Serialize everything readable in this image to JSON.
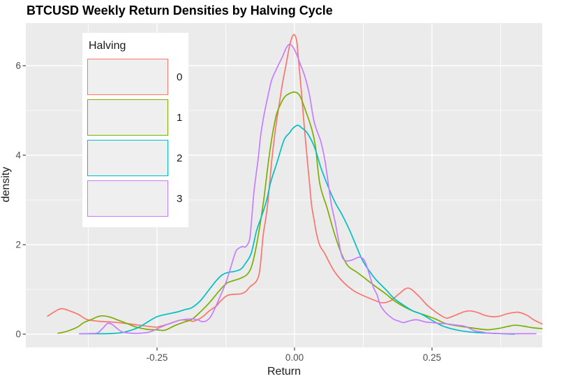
{
  "legend": {
    "title": "Halving"
  },
  "chart_data": {
    "type": "line",
    "subtype": "density",
    "title": "BTCUSD Weekly Return Densities by Halving Cycle",
    "xlabel": "Return",
    "ylabel": "density",
    "xlim": [
      -0.4886,
      0.4505
    ],
    "ylim": [
      -0.2969,
      6.9531
    ],
    "grid": true,
    "panel_bg": "#EBEBEB",
    "grid_color": "#FFFFFF",
    "tick_color": "#333333",
    "legend_position": "inside-top-left",
    "x_major_ticks": [
      -0.25,
      0.0,
      0.25
    ],
    "x_tick_labels": [
      "-0.25",
      "0.00",
      "0.25"
    ],
    "x_minor_ticks": [
      -0.375,
      -0.125,
      0.125,
      0.375
    ],
    "y_major_ticks": [
      0,
      2,
      4,
      6
    ],
    "y_tick_labels": [
      "0",
      "2",
      "4",
      "6"
    ],
    "y_minor_ticks": [
      1,
      3,
      5
    ],
    "series": [
      {
        "name": "0",
        "color": "#F8766D",
        "points": [
          [
            -0.449,
            0.4
          ],
          [
            -0.434,
            0.52
          ],
          [
            -0.423,
            0.57
          ],
          [
            -0.409,
            0.52
          ],
          [
            -0.393,
            0.44
          ],
          [
            -0.378,
            0.33
          ],
          [
            -0.358,
            0.29
          ],
          [
            -0.332,
            0.27
          ],
          [
            -0.307,
            0.24
          ],
          [
            -0.282,
            0.2
          ],
          [
            -0.263,
            0.17
          ],
          [
            -0.25,
            0.16
          ],
          [
            -0.231,
            0.22
          ],
          [
            -0.212,
            0.3
          ],
          [
            -0.203,
            0.32
          ],
          [
            -0.19,
            0.3
          ],
          [
            -0.183,
            0.29
          ],
          [
            -0.168,
            0.38
          ],
          [
            -0.155,
            0.52
          ],
          [
            -0.142,
            0.63
          ],
          [
            -0.136,
            0.72
          ],
          [
            -0.123,
            0.86
          ],
          [
            -0.11,
            0.89
          ],
          [
            -0.098,
            0.9
          ],
          [
            -0.089,
            0.95
          ],
          [
            -0.081,
            1.06
          ],
          [
            -0.069,
            1.19
          ],
          [
            -0.063,
            1.45
          ],
          [
            -0.057,
            2.21
          ],
          [
            -0.053,
            2.52
          ],
          [
            -0.049,
            2.89
          ],
          [
            -0.045,
            3.41
          ],
          [
            -0.041,
            3.93
          ],
          [
            -0.036,
            4.45
          ],
          [
            -0.032,
            4.81
          ],
          [
            -0.028,
            5.12
          ],
          [
            -0.022,
            5.6
          ],
          [
            -0.015,
            6.05
          ],
          [
            -0.009,
            6.45
          ],
          [
            -0.004,
            6.65
          ],
          [
            0.0,
            6.69
          ],
          [
            0.004,
            6.55
          ],
          [
            0.006,
            6.3
          ],
          [
            0.009,
            5.9
          ],
          [
            0.014,
            5.2
          ],
          [
            0.018,
            4.6
          ],
          [
            0.023,
            3.93
          ],
          [
            0.027,
            3.41
          ],
          [
            0.031,
            2.89
          ],
          [
            0.036,
            2.52
          ],
          [
            0.04,
            2.25
          ],
          [
            0.046,
            1.98
          ],
          [
            0.055,
            1.8
          ],
          [
            0.071,
            1.43
          ],
          [
            0.088,
            1.17
          ],
          [
            0.109,
            0.96
          ],
          [
            0.131,
            0.83
          ],
          [
            0.147,
            0.75
          ],
          [
            0.16,
            0.7
          ],
          [
            0.175,
            0.75
          ],
          [
            0.19,
            0.9
          ],
          [
            0.207,
            1.03
          ],
          [
            0.226,
            0.85
          ],
          [
            0.241,
            0.65
          ],
          [
            0.254,
            0.52
          ],
          [
            0.266,
            0.42
          ],
          [
            0.277,
            0.36
          ],
          [
            0.292,
            0.42
          ],
          [
            0.308,
            0.5
          ],
          [
            0.319,
            0.52
          ],
          [
            0.334,
            0.48
          ],
          [
            0.346,
            0.42
          ],
          [
            0.359,
            0.39
          ],
          [
            0.372,
            0.4
          ],
          [
            0.388,
            0.46
          ],
          [
            0.407,
            0.49
          ],
          [
            0.423,
            0.42
          ],
          [
            0.435,
            0.32
          ],
          [
            0.45,
            0.23
          ]
        ]
      },
      {
        "name": "1",
        "color": "#7CAE00",
        "points": [
          [
            -0.43,
            0.02
          ],
          [
            -0.415,
            0.06
          ],
          [
            -0.396,
            0.15
          ],
          [
            -0.383,
            0.26
          ],
          [
            -0.369,
            0.33
          ],
          [
            -0.358,
            0.39
          ],
          [
            -0.349,
            0.41
          ],
          [
            -0.335,
            0.38
          ],
          [
            -0.32,
            0.31
          ],
          [
            -0.305,
            0.24
          ],
          [
            -0.288,
            0.16
          ],
          [
            -0.269,
            0.11
          ],
          [
            -0.25,
            0.095
          ],
          [
            -0.235,
            0.09
          ],
          [
            -0.218,
            0.19
          ],
          [
            -0.203,
            0.26
          ],
          [
            -0.187,
            0.33
          ],
          [
            -0.171,
            0.5
          ],
          [
            -0.155,
            0.7
          ],
          [
            -0.136,
            0.98
          ],
          [
            -0.123,
            1.14
          ],
          [
            -0.11,
            1.2
          ],
          [
            -0.098,
            1.25
          ],
          [
            -0.085,
            1.35
          ],
          [
            -0.076,
            1.6
          ],
          [
            -0.066,
            2.2
          ],
          [
            -0.056,
            3.0
          ],
          [
            -0.048,
            3.8
          ],
          [
            -0.041,
            4.4
          ],
          [
            -0.033,
            4.9
          ],
          [
            -0.025,
            5.15
          ],
          [
            -0.018,
            5.3
          ],
          [
            -0.009,
            5.38
          ],
          [
            0.001,
            5.41
          ],
          [
            0.01,
            5.32
          ],
          [
            0.02,
            5.0
          ],
          [
            0.031,
            4.6
          ],
          [
            0.038,
            4.2
          ],
          [
            0.046,
            3.36
          ],
          [
            0.059,
            2.83
          ],
          [
            0.071,
            2.31
          ],
          [
            0.084,
            1.84
          ],
          [
            0.097,
            1.53
          ],
          [
            0.114,
            1.38
          ],
          [
            0.131,
            1.22
          ],
          [
            0.148,
            1.06
          ],
          [
            0.165,
            0.91
          ],
          [
            0.181,
            0.75
          ],
          [
            0.198,
            0.62
          ],
          [
            0.215,
            0.52
          ],
          [
            0.241,
            0.41
          ],
          [
            0.258,
            0.33
          ],
          [
            0.277,
            0.23
          ],
          [
            0.311,
            0.16
          ],
          [
            0.34,
            0.11
          ],
          [
            0.353,
            0.1
          ],
          [
            0.372,
            0.13
          ],
          [
            0.387,
            0.17
          ],
          [
            0.401,
            0.2
          ],
          [
            0.416,
            0.18
          ],
          [
            0.435,
            0.14
          ],
          [
            0.45,
            0.125
          ]
        ]
      },
      {
        "name": "2",
        "color": "#00BFC4",
        "points": [
          [
            -0.391,
            0.01
          ],
          [
            -0.345,
            0.01
          ],
          [
            -0.326,
            0.02
          ],
          [
            -0.311,
            0.04
          ],
          [
            -0.294,
            0.1
          ],
          [
            -0.282,
            0.16
          ],
          [
            -0.266,
            0.28
          ],
          [
            -0.25,
            0.39
          ],
          [
            -0.231,
            0.45
          ],
          [
            -0.212,
            0.5
          ],
          [
            -0.199,
            0.55
          ],
          [
            -0.187,
            0.59
          ],
          [
            -0.171,
            0.75
          ],
          [
            -0.155,
            1.0
          ],
          [
            -0.142,
            1.2
          ],
          [
            -0.132,
            1.32
          ],
          [
            -0.121,
            1.38
          ],
          [
            -0.11,
            1.4
          ],
          [
            -0.098,
            1.45
          ],
          [
            -0.091,
            1.55
          ],
          [
            -0.079,
            1.8
          ],
          [
            -0.069,
            2.31
          ],
          [
            -0.06,
            2.63
          ],
          [
            -0.051,
            2.98
          ],
          [
            -0.043,
            3.41
          ],
          [
            -0.032,
            3.83
          ],
          [
            -0.019,
            4.34
          ],
          [
            -0.009,
            4.5
          ],
          [
            -0.003,
            4.6
          ],
          [
            0.006,
            4.67
          ],
          [
            0.014,
            4.6
          ],
          [
            0.023,
            4.5
          ],
          [
            0.036,
            4.19
          ],
          [
            0.048,
            3.72
          ],
          [
            0.061,
            3.3
          ],
          [
            0.074,
            2.94
          ],
          [
            0.086,
            2.68
          ],
          [
            0.101,
            2.3
          ],
          [
            0.122,
            1.69
          ],
          [
            0.135,
            1.43
          ],
          [
            0.148,
            1.22
          ],
          [
            0.165,
            1.01
          ],
          [
            0.181,
            0.8
          ],
          [
            0.198,
            0.65
          ],
          [
            0.215,
            0.52
          ],
          [
            0.232,
            0.44
          ],
          [
            0.25,
            0.31
          ],
          [
            0.266,
            0.2
          ],
          [
            0.277,
            0.15
          ],
          [
            0.296,
            0.09
          ],
          [
            0.311,
            0.06
          ],
          [
            0.327,
            0.04
          ],
          [
            0.34,
            0.03
          ],
          [
            0.359,
            0.02
          ],
          [
            0.378,
            0.01
          ],
          [
            0.4,
            0.0
          ]
        ]
      },
      {
        "name": "3",
        "color": "#C77CFF",
        "points": [
          [
            -0.391,
            0.01
          ],
          [
            -0.371,
            0.015
          ],
          [
            -0.358,
            0.03
          ],
          [
            -0.348,
            0.14
          ],
          [
            -0.34,
            0.24
          ],
          [
            -0.332,
            0.22
          ],
          [
            -0.322,
            0.12
          ],
          [
            -0.313,
            0.05
          ],
          [
            -0.301,
            0.025
          ],
          [
            -0.282,
            0.02
          ],
          [
            -0.263,
            0.05
          ],
          [
            -0.25,
            0.12
          ],
          [
            -0.231,
            0.22
          ],
          [
            -0.212,
            0.3
          ],
          [
            -0.199,
            0.33
          ],
          [
            -0.187,
            0.34
          ],
          [
            -0.176,
            0.32
          ],
          [
            -0.168,
            0.28
          ],
          [
            -0.16,
            0.3
          ],
          [
            -0.152,
            0.4
          ],
          [
            -0.142,
            0.65
          ],
          [
            -0.135,
            0.85
          ],
          [
            -0.126,
            1.11
          ],
          [
            -0.117,
            1.45
          ],
          [
            -0.107,
            1.84
          ],
          [
            -0.1,
            1.93
          ],
          [
            -0.094,
            1.96
          ],
          [
            -0.089,
            1.95
          ],
          [
            -0.082,
            2.1
          ],
          [
            -0.079,
            2.42
          ],
          [
            -0.074,
            3.15
          ],
          [
            -0.07,
            3.56
          ],
          [
            -0.066,
            3.93
          ],
          [
            -0.062,
            4.4
          ],
          [
            -0.057,
            4.8
          ],
          [
            -0.053,
            5.05
          ],
          [
            -0.047,
            5.4
          ],
          [
            -0.041,
            5.7
          ],
          [
            -0.03,
            6.0
          ],
          [
            -0.022,
            6.2
          ],
          [
            -0.015,
            6.4
          ],
          [
            -0.009,
            6.48
          ],
          [
            -0.003,
            6.42
          ],
          [
            0.004,
            6.25
          ],
          [
            0.01,
            6.05
          ],
          [
            0.019,
            5.75
          ],
          [
            0.027,
            5.36
          ],
          [
            0.036,
            4.73
          ],
          [
            0.048,
            4.3
          ],
          [
            0.055,
            3.9
          ],
          [
            0.061,
            3.4
          ],
          [
            0.067,
            2.9
          ],
          [
            0.074,
            2.5
          ],
          [
            0.08,
            2.1
          ],
          [
            0.086,
            1.75
          ],
          [
            0.093,
            1.64
          ],
          [
            0.105,
            1.66
          ],
          [
            0.118,
            1.72
          ],
          [
            0.127,
            1.65
          ],
          [
            0.135,
            1.38
          ],
          [
            0.143,
            1.06
          ],
          [
            0.15,
            0.88
          ],
          [
            0.156,
            0.65
          ],
          [
            0.165,
            0.49
          ],
          [
            0.173,
            0.4
          ],
          [
            0.181,
            0.33
          ],
          [
            0.19,
            0.29
          ],
          [
            0.198,
            0.26
          ],
          [
            0.213,
            0.31
          ],
          [
            0.223,
            0.32
          ],
          [
            0.239,
            0.27
          ],
          [
            0.25,
            0.26
          ],
          [
            0.264,
            0.24
          ],
          [
            0.277,
            0.23
          ],
          [
            0.296,
            0.2
          ],
          [
            0.311,
            0.17
          ],
          [
            0.327,
            0.08
          ],
          [
            0.34,
            0.05
          ],
          [
            0.353,
            0.02
          ],
          [
            0.372,
            0.012
          ],
          [
            0.391,
            0.01
          ],
          [
            0.416,
            0.01
          ],
          [
            0.439,
            0.01
          ]
        ]
      }
    ]
  }
}
